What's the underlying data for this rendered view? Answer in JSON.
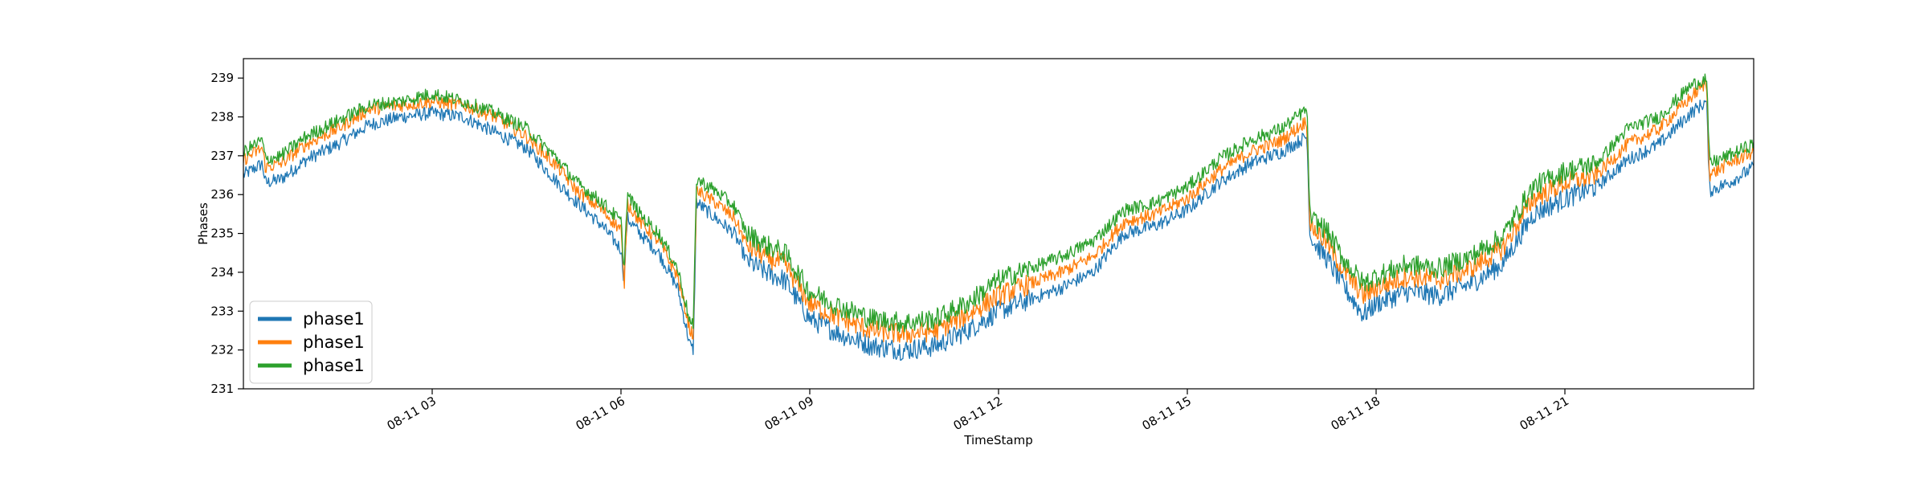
{
  "chart_data": {
    "type": "line",
    "title": "",
    "xlabel": "TimeStamp",
    "ylabel": "Phases",
    "x_unit": "hours since 08-11 00:00",
    "xlim": [
      0.0,
      24.0
    ],
    "ylim": [
      231,
      239.5
    ],
    "y_ticks": [
      231,
      232,
      233,
      234,
      235,
      236,
      237,
      238,
      239
    ],
    "x_ticks": [
      {
        "x": 3,
        "label": "08-11 03"
      },
      {
        "x": 6,
        "label": "08-11 06"
      },
      {
        "x": 9,
        "label": "08-11 09"
      },
      {
        "x": 12,
        "label": "08-11 12"
      },
      {
        "x": 15,
        "label": "08-11 15"
      },
      {
        "x": 18,
        "label": "08-11 18"
      },
      {
        "x": 21,
        "label": "08-11 21"
      }
    ],
    "grid": false,
    "legend_position": "lower-left",
    "series": [
      {
        "name": "phase1",
        "color": "#1f77b4",
        "x": [
          0.0,
          0.3,
          0.35,
          0.6,
          1.0,
          1.5,
          2.0,
          2.5,
          3.0,
          3.5,
          4.0,
          4.5,
          5.0,
          5.3,
          5.7,
          6.0,
          6.05,
          6.1,
          6.3,
          6.6,
          6.9,
          7.1,
          7.15,
          7.2,
          7.5,
          7.8,
          8.0,
          8.3,
          8.6,
          9.0,
          9.5,
          10.0,
          10.5,
          11.0,
          11.5,
          12.0,
          12.5,
          13.0,
          13.5,
          14.0,
          14.5,
          15.0,
          15.5,
          16.0,
          16.5,
          16.9,
          16.95,
          17.2,
          17.5,
          17.8,
          18.0,
          18.5,
          19.0,
          19.5,
          20.0,
          20.5,
          21.0,
          21.5,
          22.0,
          22.5,
          23.0,
          23.25,
          23.3,
          23.6,
          24.0
        ],
        "y": [
          236.5,
          236.8,
          236.3,
          236.4,
          236.9,
          237.3,
          237.8,
          238.0,
          238.1,
          238.0,
          237.6,
          237.2,
          236.3,
          235.8,
          235.2,
          234.6,
          233.8,
          235.4,
          235.0,
          234.5,
          233.6,
          232.1,
          232.0,
          235.8,
          235.4,
          235.0,
          234.3,
          234.0,
          233.8,
          232.8,
          232.4,
          232.1,
          232.0,
          232.1,
          232.5,
          233.0,
          233.3,
          233.6,
          234.0,
          235.0,
          235.2,
          235.6,
          236.3,
          236.8,
          237.1,
          237.5,
          234.9,
          234.4,
          233.6,
          232.9,
          233.2,
          233.5,
          233.4,
          233.7,
          234.2,
          235.5,
          235.9,
          236.2,
          236.9,
          237.3,
          238.1,
          238.4,
          236.1,
          236.3,
          236.7
        ]
      },
      {
        "name": "phase1",
        "color": "#ff7f0e",
        "x": [
          0.0,
          0.3,
          0.35,
          0.6,
          1.0,
          1.5,
          2.0,
          2.5,
          3.0,
          3.5,
          4.0,
          4.5,
          5.0,
          5.3,
          5.7,
          6.0,
          6.05,
          6.1,
          6.3,
          6.6,
          6.9,
          7.1,
          7.15,
          7.2,
          7.5,
          7.8,
          8.0,
          8.3,
          8.6,
          9.0,
          9.5,
          10.0,
          10.5,
          11.0,
          11.5,
          12.0,
          12.5,
          13.0,
          13.5,
          14.0,
          14.5,
          15.0,
          15.5,
          16.0,
          16.5,
          16.9,
          16.95,
          17.2,
          17.5,
          17.8,
          18.0,
          18.5,
          19.0,
          19.5,
          20.0,
          20.5,
          21.0,
          21.5,
          22.0,
          22.5,
          23.0,
          23.25,
          23.3,
          23.6,
          24.0
        ],
        "y": [
          236.9,
          237.2,
          236.7,
          236.8,
          237.3,
          237.7,
          238.2,
          238.3,
          238.4,
          238.3,
          238.0,
          237.5,
          236.7,
          236.1,
          235.6,
          235.1,
          233.6,
          235.8,
          235.3,
          234.8,
          233.9,
          232.5,
          232.4,
          236.1,
          235.8,
          235.4,
          234.7,
          234.4,
          234.2,
          233.2,
          232.8,
          232.5,
          232.4,
          232.5,
          232.9,
          233.4,
          233.7,
          234.0,
          234.4,
          235.3,
          235.5,
          235.9,
          236.6,
          237.1,
          237.4,
          237.9,
          235.2,
          234.8,
          234.0,
          233.4,
          233.6,
          233.9,
          233.8,
          234.1,
          234.6,
          235.9,
          236.3,
          236.5,
          237.3,
          237.7,
          238.5,
          238.9,
          236.5,
          236.8,
          237.1
        ]
      },
      {
        "name": "phase1",
        "color": "#2ca02c",
        "x": [
          0.0,
          0.3,
          0.35,
          0.6,
          1.0,
          1.5,
          2.0,
          2.5,
          3.0,
          3.5,
          4.0,
          4.5,
          5.0,
          5.3,
          5.7,
          6.0,
          6.05,
          6.1,
          6.3,
          6.6,
          6.9,
          7.1,
          7.15,
          7.2,
          7.5,
          7.8,
          8.0,
          8.3,
          8.6,
          9.0,
          9.5,
          10.0,
          10.5,
          11.0,
          11.5,
          12.0,
          12.5,
          13.0,
          13.5,
          14.0,
          14.5,
          15.0,
          15.5,
          16.0,
          16.5,
          16.9,
          16.95,
          17.2,
          17.5,
          17.8,
          18.0,
          18.5,
          19.0,
          19.5,
          20.0,
          20.5,
          21.0,
          21.5,
          22.0,
          22.5,
          23.0,
          23.25,
          23.3,
          23.6,
          24.0
        ],
        "y": [
          237.1,
          237.4,
          236.9,
          237.0,
          237.5,
          237.9,
          238.3,
          238.4,
          238.6,
          238.4,
          238.1,
          237.7,
          236.9,
          236.3,
          235.8,
          235.3,
          234.1,
          236.0,
          235.5,
          235.0,
          234.1,
          232.7,
          232.6,
          236.4,
          236.1,
          235.7,
          235.0,
          234.7,
          234.5,
          233.5,
          233.1,
          232.8,
          232.7,
          232.8,
          233.2,
          233.8,
          234.1,
          234.4,
          234.8,
          235.6,
          235.8,
          236.2,
          236.9,
          237.4,
          237.7,
          238.2,
          235.4,
          235.1,
          234.3,
          233.7,
          233.9,
          234.2,
          234.1,
          234.4,
          234.9,
          236.2,
          236.6,
          236.8,
          237.7,
          238.0,
          238.8,
          239.0,
          236.8,
          237.0,
          237.3
        ]
      }
    ]
  }
}
